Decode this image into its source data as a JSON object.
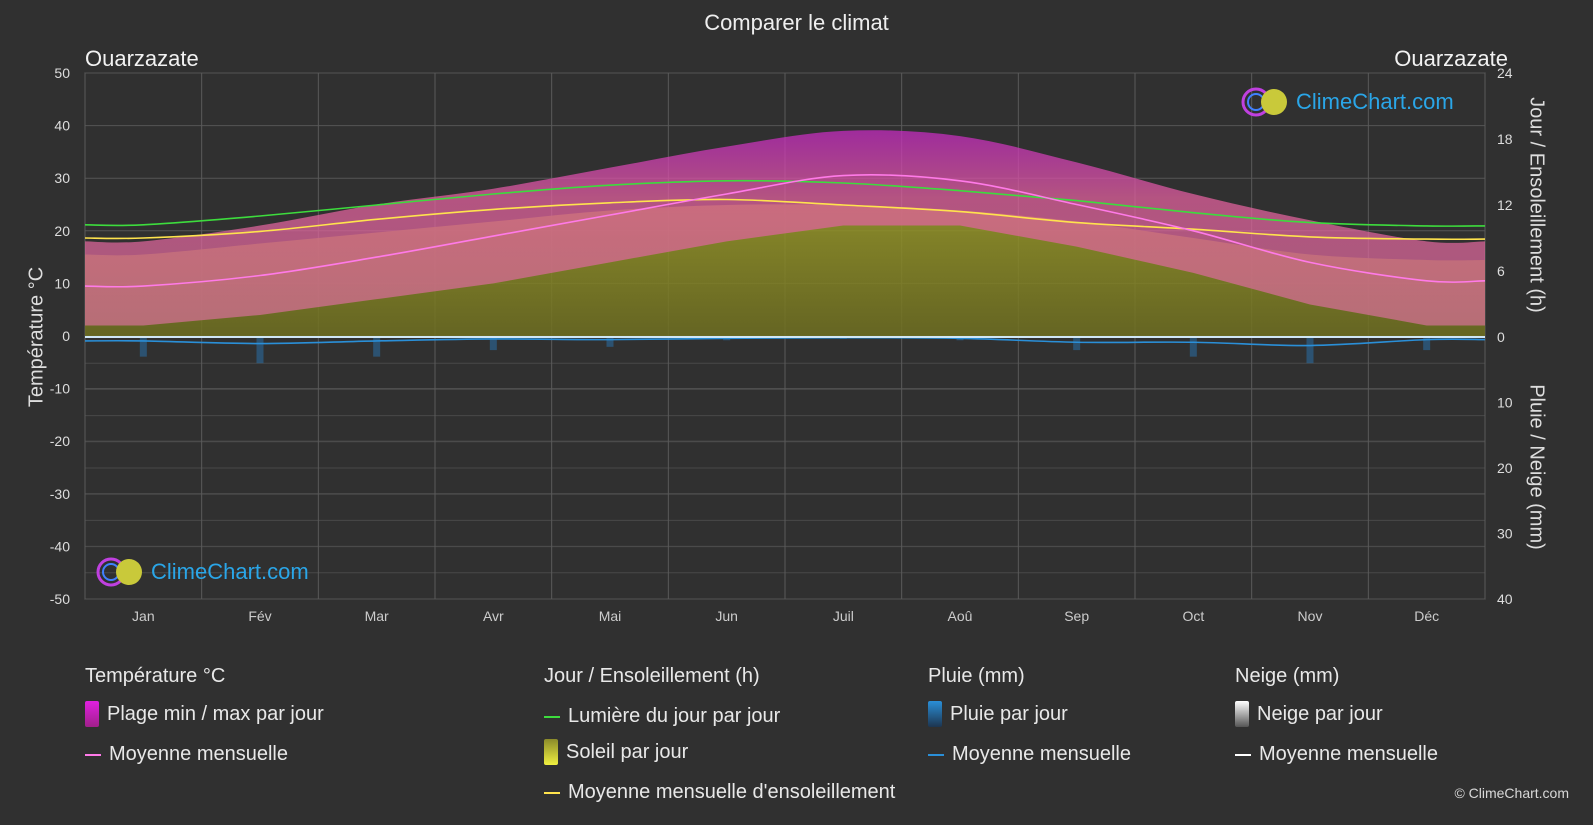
{
  "title": "Comparer le climat",
  "location_left": "Ouarzazate",
  "location_right": "Ouarzazate",
  "axis_left_title": "Température °C",
  "axis_right_top_title": "Jour / Ensoleillement (h)",
  "axis_right_bottom_title": "Pluie / Neige (mm)",
  "logo_text": "ClimeChart.com",
  "copyright": "© ClimeChart.com",
  "colors": {
    "background": "#303030",
    "temp_range": "#d63aa8",
    "temp_mean": "#ff7ae8",
    "daylight": "#3ddc3d",
    "sunshine_fill": "#8a8a2a",
    "sunshine_mean": "#ffe34d",
    "rain": "#2a8fd8",
    "snow": "#ffffff",
    "logo": "#2aa6e8"
  },
  "legend": {
    "temperature": {
      "heading": "Température °C",
      "range_label": "Plage min / max par jour",
      "mean_label": "Moyenne mensuelle"
    },
    "sun": {
      "heading": "Jour / Ensoleillement (h)",
      "daylight_label": "Lumière du jour par jour",
      "sunshine_label": "Soleil par jour",
      "sunshine_mean_label": "Moyenne mensuelle d'ensoleillement"
    },
    "rain": {
      "heading": "Pluie (mm)",
      "rain_label": "Pluie par jour",
      "mean_label": "Moyenne mensuelle"
    },
    "snow": {
      "heading": "Neige (mm)",
      "snow_label": "Neige par jour",
      "mean_label": "Moyenne mensuelle"
    }
  },
  "chart_data": {
    "type": "area",
    "categories": [
      "Jan",
      "Fév",
      "Mar",
      "Avr",
      "Mai",
      "Jun",
      "Juil",
      "Aoû",
      "Sep",
      "Oct",
      "Nov",
      "Déc"
    ],
    "axes": {
      "temperature": {
        "min": -50,
        "max": 50,
        "ticks": [
          50,
          40,
          30,
          20,
          10,
          0,
          -10,
          -20,
          -30,
          -40,
          -50
        ]
      },
      "hours": {
        "min": 0,
        "max": 24,
        "ticks": [
          24,
          18,
          12,
          6,
          0
        ]
      },
      "precip_mm": {
        "min": 0,
        "max": 40,
        "ticks": [
          0,
          10,
          20,
          30,
          40
        ]
      }
    },
    "grid": true,
    "series": [
      {
        "name": "Plage min / max par jour",
        "axis": "temperature",
        "kind": "range",
        "min": [
          2,
          4,
          7,
          10,
          14,
          18,
          21,
          21,
          17,
          12,
          6,
          2
        ],
        "max": [
          18,
          21,
          25,
          28,
          32,
          36,
          39,
          38,
          33,
          27,
          22,
          18
        ]
      },
      {
        "name": "Moyenne mensuelle",
        "axis": "temperature",
        "kind": "line",
        "values": [
          9.5,
          11.5,
          15,
          19,
          23,
          27,
          30.5,
          29.5,
          25,
          20,
          14,
          10.5
        ]
      },
      {
        "name": "Lumière du jour par jour",
        "axis": "hours",
        "kind": "line",
        "values": [
          10.2,
          11.0,
          12.0,
          13.0,
          13.8,
          14.2,
          14.0,
          13.3,
          12.4,
          11.3,
          10.4,
          10.1
        ]
      },
      {
        "name": "Soleil par jour",
        "axis": "hours",
        "kind": "area",
        "values": [
          7.5,
          8.5,
          9.5,
          10.5,
          11.5,
          12.0,
          12.0,
          11.5,
          10.5,
          9.0,
          7.5,
          7.0
        ]
      },
      {
        "name": "Moyenne mensuelle d'ensoleillement",
        "axis": "hours",
        "kind": "line",
        "values": [
          9.0,
          9.6,
          10.7,
          11.6,
          12.2,
          12.5,
          12.0,
          11.4,
          10.4,
          9.8,
          9.1,
          8.9
        ]
      },
      {
        "name": "Pluie par jour",
        "axis": "precip_mm",
        "kind": "bars",
        "values": [
          3,
          4,
          3,
          2,
          1.5,
          0.5,
          0.3,
          0.5,
          2,
          3,
          4,
          2
        ]
      },
      {
        "name": "Moyenne mensuelle (pluie)",
        "axis": "precip_mm",
        "kind": "line",
        "values": [
          0.6,
          1.0,
          0.6,
          0.3,
          0.4,
          0.2,
          0.1,
          0.2,
          0.8,
          0.8,
          1.3,
          0.4
        ]
      },
      {
        "name": "Moyenne mensuelle (neige)",
        "axis": "precip_mm",
        "kind": "line",
        "values": [
          0,
          0,
          0,
          0,
          0,
          0,
          0,
          0,
          0,
          0,
          0,
          0
        ]
      }
    ]
  }
}
